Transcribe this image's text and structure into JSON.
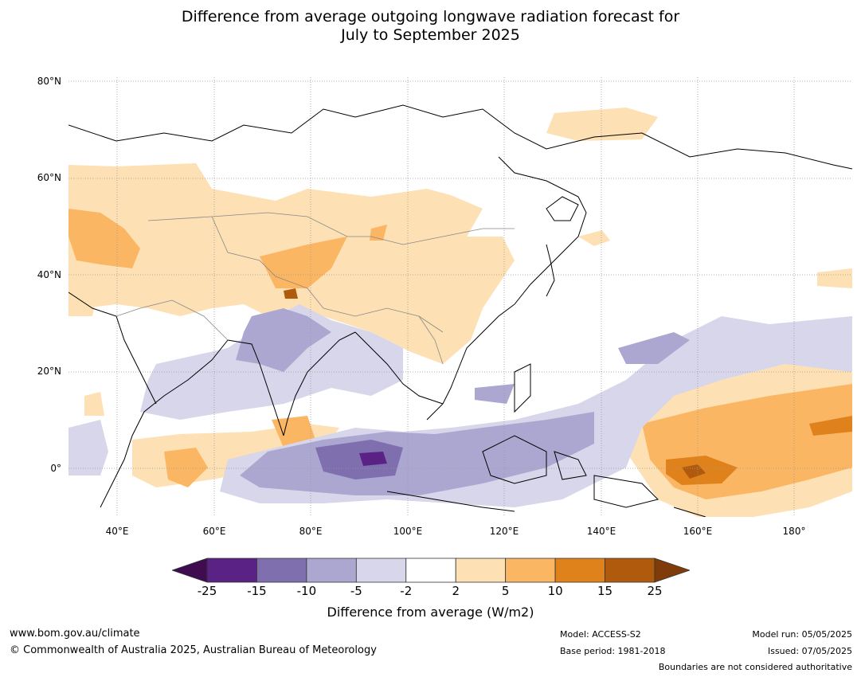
{
  "title_line1": "Difference from average outgoing longwave radiation forecast for",
  "title_line2": "July to September 2025",
  "map": {
    "lat_labels": [
      "80°N",
      "60°N",
      "40°N",
      "20°N",
      "0°"
    ],
    "lon_labels": [
      "40°E",
      "60°E",
      "80°E",
      "100°E",
      "120°E",
      "140°E",
      "160°E",
      "180°"
    ]
  },
  "colorbar": {
    "ticks": [
      "-25",
      "-15",
      "-10",
      "-5",
      "-2",
      "2",
      "5",
      "10",
      "15",
      "25"
    ],
    "colors": [
      "#3f0d4f",
      "#5a2285",
      "#7f6fae",
      "#aca7d0",
      "#d7d6ea",
      "#ffffff",
      "#fde0b3",
      "#fbb664",
      "#e0821c",
      "#b05a0d",
      "#7f3c0a"
    ],
    "label": "Difference from average (W/m2)"
  },
  "footer": {
    "website": "www.bom.gov.au/climate",
    "copyright": "© Commonwealth of Australia 2025, Australian Bureau of Meteorology",
    "model": "Model: ACCESS-S2",
    "base_period": "Base period: 1981-2018",
    "model_run": "Model run: 05/05/2025",
    "issued": "Issued: 07/05/2025",
    "disclaimer": "Boundaries are not considered authoritative"
  }
}
